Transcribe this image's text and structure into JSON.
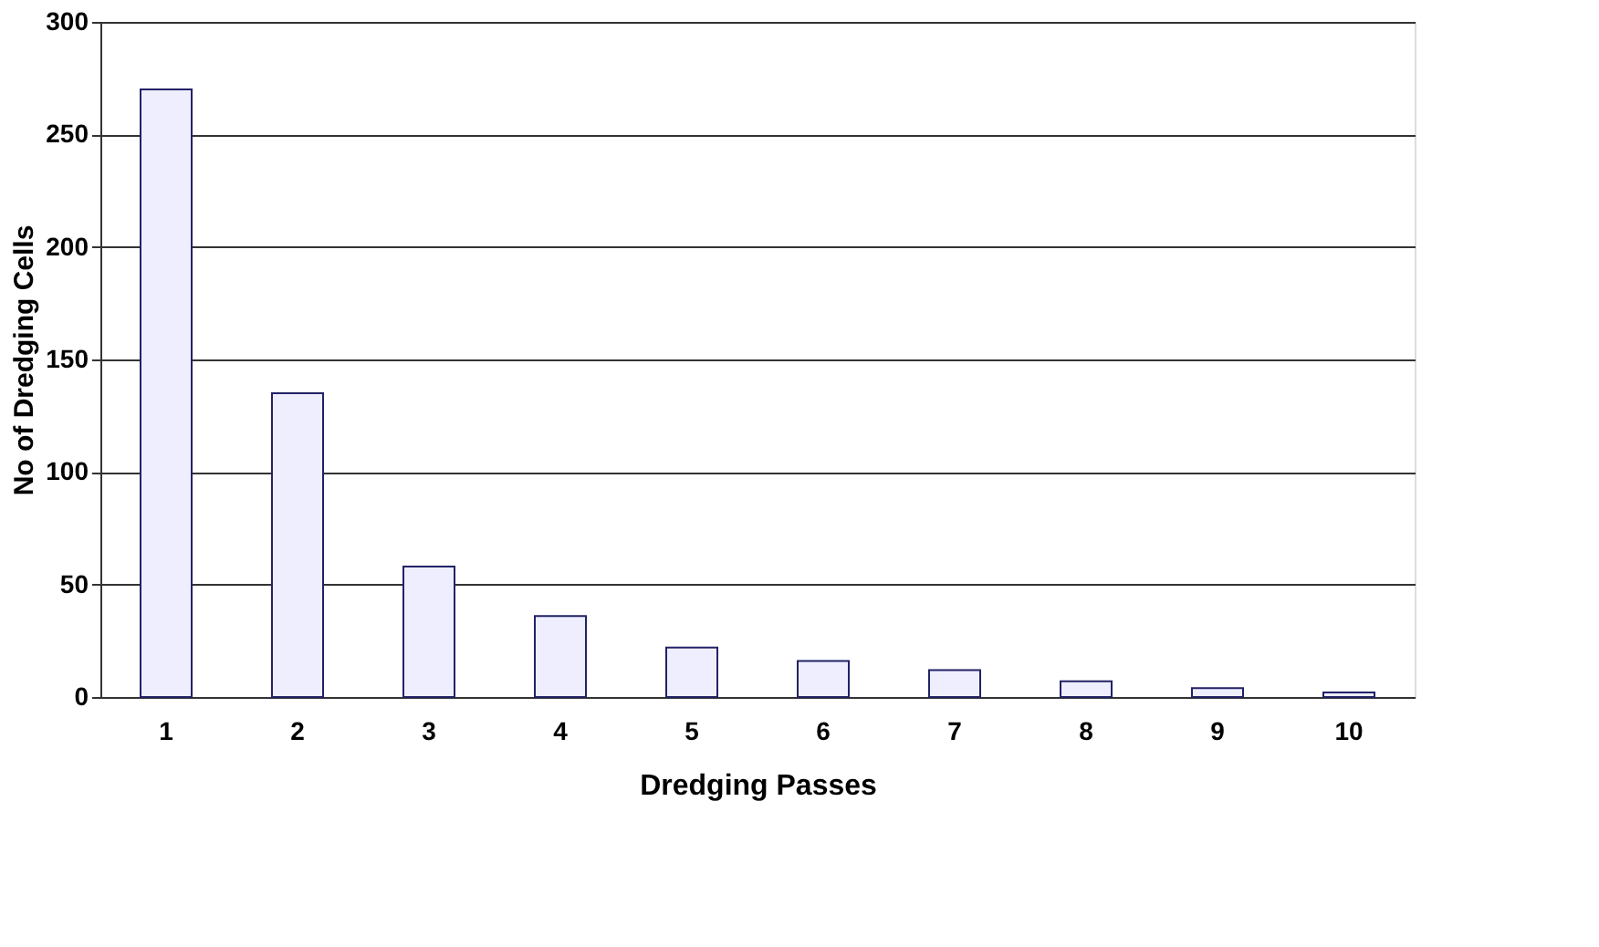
{
  "chart_data": {
    "type": "bar",
    "xlabel": "Dredging Passes",
    "ylabel": "No of Dredging Cells",
    "categories": [
      "1",
      "2",
      "3",
      "4",
      "5",
      "6",
      "7",
      "8",
      "9",
      "10"
    ],
    "values": [
      270,
      135,
      58,
      36,
      22,
      16,
      12,
      7,
      4,
      2
    ],
    "color": "#eeeeff",
    "ylim": [
      0,
      300
    ],
    "yticks": [
      0,
      50,
      100,
      150,
      200,
      250,
      300
    ],
    "grid": "y"
  }
}
